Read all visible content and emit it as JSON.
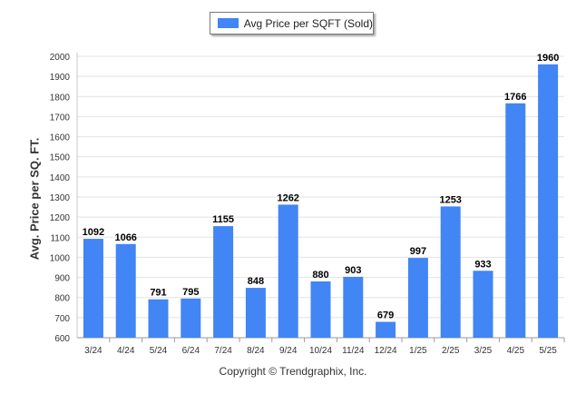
{
  "chart_data": {
    "type": "bar",
    "categories": [
      "3/24",
      "4/24",
      "5/24",
      "6/24",
      "7/24",
      "8/24",
      "9/24",
      "10/24",
      "11/24",
      "12/24",
      "1/25",
      "2/25",
      "3/25",
      "4/25",
      "5/25"
    ],
    "series": [
      {
        "name": "Avg Price per SQFT (Sold)",
        "values": [
          1092,
          1066,
          791,
          795,
          1155,
          848,
          1262,
          880,
          903,
          679,
          997,
          1253,
          933,
          1766,
          1960
        ]
      }
    ],
    "ylabel": "Avg. Price per SQ. FT.",
    "xlabel": "",
    "ylim": [
      600,
      2000
    ],
    "yticks": [
      600,
      700,
      800,
      900,
      1000,
      1100,
      1200,
      1300,
      1400,
      1500,
      1600,
      1700,
      1800,
      1900,
      2000
    ],
    "grid": true,
    "legend_position": "top-center",
    "bar_color": "#4285f4",
    "data_labels": true
  },
  "caption": "Copyright © Trendgraphix, Inc."
}
